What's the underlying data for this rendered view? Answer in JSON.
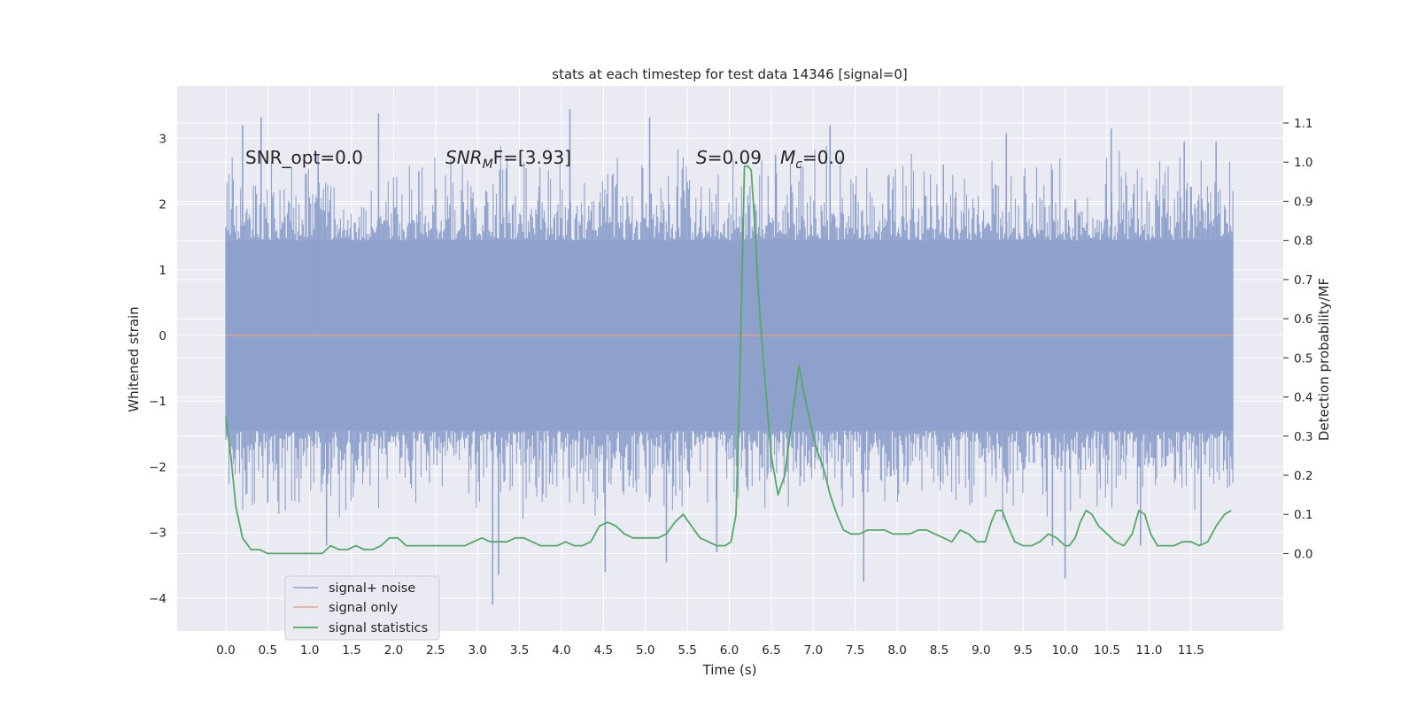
{
  "chart_data": {
    "type": "line",
    "title": "stats at each timestep for test data 14346 [signal=0]",
    "xlabel": "Time (s)",
    "ylabel": "Whitened strain",
    "y2label": "Detection probability/MF",
    "xlim": [
      -0.58,
      12.6
    ],
    "ylim": [
      -4.5,
      3.8
    ],
    "y2lim": [
      -0.198,
      1.195
    ],
    "xticks": [
      "0.0",
      "0.5",
      "1.0",
      "1.5",
      "2.0",
      "2.5",
      "3.0",
      "3.5",
      "4.0",
      "4.5",
      "5.0",
      "5.5",
      "6.0",
      "6.5",
      "7.0",
      "7.5",
      "8.0",
      "8.5",
      "9.0",
      "9.5",
      "10.0",
      "10.5",
      "11.0",
      "11.5"
    ],
    "yticks": [
      "3",
      "2",
      "1",
      "0",
      "−1",
      "−2",
      "−3",
      "−4"
    ],
    "y2ticks": [
      "1.1",
      "1.0",
      "0.9",
      "0.8",
      "0.7",
      "0.6",
      "0.5",
      "0.4",
      "0.3",
      "0.2",
      "0.1",
      "0.0"
    ],
    "grid": true,
    "legend": {
      "placement": "lower-left"
    },
    "annotations": {
      "snr_opt": "SNR_opt=0.0",
      "snr_mf_sym": "SNR",
      "snr_mf_sub": "M",
      "snr_mf_tail": "F=[3.93]",
      "s_sym": "S",
      "s_val": "=0.09",
      "mc_sym": "M",
      "mc_sub": "c",
      "mc_val": "=0.0"
    },
    "series": [
      {
        "name": "signal+ noise",
        "color": "#8ea1cc",
        "axis": "left",
        "noise_band": [
          -1.45,
          1.45
        ],
        "spike_range": [
          0,
          12
        ],
        "spikes_up": [
          [
            0.2,
            3.2
          ],
          [
            0.42,
            3.32
          ],
          [
            1.1,
            2.75
          ],
          [
            1.82,
            3.38
          ],
          [
            2.3,
            2.5
          ],
          [
            4.1,
            3.45
          ],
          [
            5.05,
            3.32
          ],
          [
            6.55,
            2.75
          ],
          [
            7.2,
            3.2
          ],
          [
            8.55,
            2.6
          ],
          [
            9.3,
            3.08
          ],
          [
            10.55,
            3.15
          ],
          [
            11.42,
            2.95
          ],
          [
            11.8,
            2.95
          ]
        ],
        "spikes_down": [
          [
            0.5,
            -2.55
          ],
          [
            1.2,
            -3.2
          ],
          [
            3.18,
            -4.1
          ],
          [
            3.25,
            -3.65
          ],
          [
            4.52,
            -3.6
          ],
          [
            5.25,
            -3.45
          ],
          [
            5.85,
            -3.3
          ],
          [
            7.6,
            -3.75
          ],
          [
            9.85,
            -3.2
          ],
          [
            10.0,
            -3.7
          ],
          [
            10.9,
            -3.2
          ],
          [
            11.62,
            -3.2
          ]
        ]
      },
      {
        "name": "signal only",
        "color": "#dd8452",
        "axis": "left",
        "x": [
          0,
          12
        ],
        "y": [
          0,
          0
        ]
      },
      {
        "name": "signal statistics",
        "color": "#55a868",
        "axis": "right",
        "x": [
          0.0,
          0.06,
          0.12,
          0.2,
          0.3,
          0.4,
          0.5,
          0.65,
          0.8,
          0.95,
          1.05,
          1.15,
          1.25,
          1.35,
          1.45,
          1.55,
          1.65,
          1.75,
          1.85,
          1.95,
          2.05,
          2.15,
          2.25,
          2.35,
          2.45,
          2.55,
          2.65,
          2.75,
          2.85,
          2.95,
          3.05,
          3.15,
          3.25,
          3.35,
          3.45,
          3.55,
          3.65,
          3.75,
          3.85,
          3.95,
          4.05,
          4.15,
          4.25,
          4.35,
          4.45,
          4.55,
          4.65,
          4.75,
          4.85,
          4.95,
          5.05,
          5.15,
          5.25,
          5.35,
          5.45,
          5.55,
          5.65,
          5.75,
          5.85,
          5.95,
          6.02,
          6.08,
          6.13,
          6.18,
          6.22,
          6.26,
          6.3,
          6.35,
          6.42,
          6.5,
          6.58,
          6.66,
          6.72,
          6.78,
          6.83,
          6.88,
          6.94,
          7.0,
          7.05,
          7.12,
          7.2,
          7.28,
          7.36,
          7.45,
          7.55,
          7.65,
          7.75,
          7.85,
          7.95,
          8.05,
          8.15,
          8.25,
          8.35,
          8.45,
          8.55,
          8.65,
          8.75,
          8.85,
          8.95,
          9.05,
          9.12,
          9.18,
          9.25,
          9.32,
          9.4,
          9.5,
          9.6,
          9.7,
          9.8,
          9.9,
          10.0,
          10.05,
          10.12,
          10.18,
          10.25,
          10.32,
          10.4,
          10.5,
          10.6,
          10.7,
          10.8,
          10.88,
          10.95,
          11.02,
          11.1,
          11.2,
          11.3,
          11.4,
          11.5,
          11.6,
          11.7,
          11.8,
          11.9,
          11.98
        ],
        "y": [
          0.35,
          0.25,
          0.12,
          0.04,
          0.01,
          0.01,
          0.0,
          0.0,
          0.0,
          0.0,
          0.0,
          0.0,
          0.02,
          0.01,
          0.01,
          0.02,
          0.01,
          0.01,
          0.02,
          0.04,
          0.04,
          0.02,
          0.02,
          0.02,
          0.02,
          0.02,
          0.02,
          0.02,
          0.02,
          0.03,
          0.04,
          0.03,
          0.03,
          0.03,
          0.04,
          0.04,
          0.03,
          0.02,
          0.02,
          0.02,
          0.03,
          0.02,
          0.02,
          0.03,
          0.07,
          0.08,
          0.07,
          0.05,
          0.04,
          0.04,
          0.04,
          0.04,
          0.05,
          0.08,
          0.1,
          0.07,
          0.04,
          0.03,
          0.02,
          0.02,
          0.03,
          0.1,
          0.5,
          0.99,
          0.99,
          0.98,
          0.85,
          0.65,
          0.45,
          0.25,
          0.15,
          0.2,
          0.3,
          0.4,
          0.48,
          0.42,
          0.36,
          0.3,
          0.26,
          0.22,
          0.15,
          0.1,
          0.06,
          0.05,
          0.05,
          0.06,
          0.06,
          0.06,
          0.05,
          0.05,
          0.05,
          0.06,
          0.06,
          0.05,
          0.04,
          0.03,
          0.06,
          0.05,
          0.03,
          0.03,
          0.08,
          0.11,
          0.11,
          0.07,
          0.03,
          0.02,
          0.02,
          0.03,
          0.05,
          0.04,
          0.02,
          0.02,
          0.04,
          0.08,
          0.11,
          0.1,
          0.07,
          0.05,
          0.03,
          0.02,
          0.05,
          0.11,
          0.1,
          0.05,
          0.02,
          0.02,
          0.02,
          0.03,
          0.03,
          0.02,
          0.03,
          0.07,
          0.1,
          0.11
        ]
      }
    ]
  }
}
